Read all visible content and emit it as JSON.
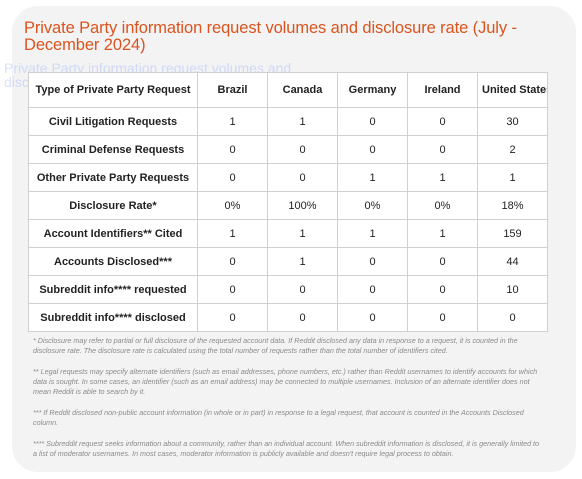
{
  "title": "Private Party information request volumes and disclosure rate  (July - December 2024)",
  "ghost_text": "Private Party information request volumes and disclosure rate (July - December 2024)",
  "table": {
    "columns": [
      "Type of Private Party Request",
      "Brazil",
      "Canada",
      "Germany",
      "Ireland",
      "United States"
    ],
    "rows": [
      {
        "label": "Civil Litigation Requests",
        "values": [
          "1",
          "1",
          "0",
          "0",
          "30"
        ]
      },
      {
        "label": "Criminal Defense Requests",
        "values": [
          "0",
          "0",
          "0",
          "0",
          "2"
        ]
      },
      {
        "label": "Other Private Party Requests",
        "values": [
          "0",
          "0",
          "1",
          "1",
          "1"
        ]
      },
      {
        "label": "Disclosure Rate*",
        "values": [
          "0%",
          "100%",
          "0%",
          "0%",
          "18%"
        ]
      },
      {
        "label": "Account Identifiers** Cited",
        "values": [
          "1",
          "1",
          "1",
          "1",
          "159"
        ]
      },
      {
        "label": "Accounts Disclosed***",
        "values": [
          "0",
          "1",
          "0",
          "0",
          "44"
        ]
      },
      {
        "label": "Subreddit info**** requested",
        "values": [
          "0",
          "0",
          "0",
          "0",
          "10"
        ]
      },
      {
        "label": "Subreddit info**** disclosed",
        "values": [
          "0",
          "0",
          "0",
          "0",
          "0"
        ]
      }
    ]
  },
  "footnotes": [
    "* Disclosure may refer to partial or full disclosure of the requested account data.  If Reddit disclosed any data in response to a request, it is counted in the disclosure rate.  The disclosure rate is calculated using the total number of requests rather than the total number of identifiers cited.",
    "** Legal requests may specify alternate identifiers (such as email addresses, phone numbers, etc.) rather than Reddit usernames to identify accounts for which data is sought.  In some cases, an identifier (such as an email address) may be connected to multiple usernames.  Inclusion of an alternate identifier does not mean Reddit is able to search by it.",
    "*** If Reddit disclosed non-public account information (in whole or in part) in response to a legal request, that account is counted in the Accounts Disclosed column.",
    "**** Subreddit request seeks information about a community, rather than an individual account.  When subreddit information is disclosed, it is generally limited to a list of moderator usernames.  In most cases, moderator information is publicly available and doesn't require legal process to obtain."
  ]
}
